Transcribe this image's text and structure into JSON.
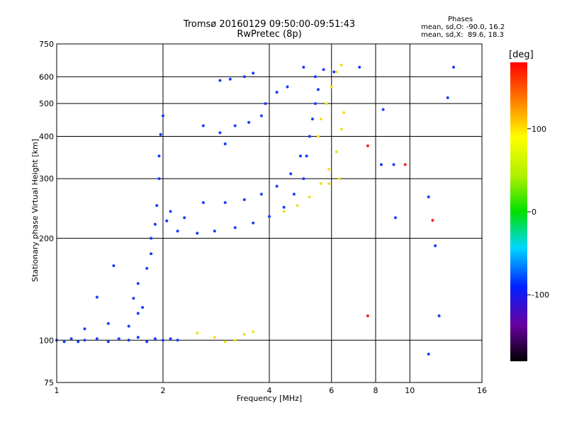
{
  "header": {
    "title_line1": "Tromsø 20160129 09:50:00-09:51:43",
    "title_line2": "RwPretec (8p)",
    "info_title": "Phases",
    "info_o": "mean, sd,O: -90.0, 16.2",
    "info_x": "mean, sd,X:  89.6, 18.3"
  },
  "chart_data": {
    "type": "scatter",
    "title": "Tromsø 20160129 09:50:00-09:51:43",
    "subtitle": "RwPretec (8p)",
    "xlabel": "Frequency [MHz]",
    "ylabel": "Stationary phase Virtual Height [km]",
    "x_scale": "log",
    "y_scale": "log",
    "xlim": [
      1,
      16
    ],
    "ylim": [
      75,
      750
    ],
    "x_ticks": [
      1,
      2,
      4,
      6,
      8,
      10,
      16
    ],
    "x_tick_labels": [
      "1",
      "2",
      "4",
      "6",
      "8",
      "10",
      "16"
    ],
    "y_ticks": [
      75,
      100,
      200,
      300,
      400,
      500,
      600,
      750
    ],
    "y_tick_labels": [
      "75",
      "100",
      "200",
      "300",
      "400",
      "500",
      "600",
      "750"
    ],
    "grid": true,
    "colorbar": {
      "label": "[deg]",
      "range": [
        -180,
        180
      ],
      "ticks": [
        -100,
        0,
        100
      ],
      "tick_labels": [
        "-100",
        "0",
        "100"
      ]
    },
    "series": [
      {
        "mode": "O",
        "color": "#1a3aff",
        "points": [
          [
            1.0,
            100
          ],
          [
            1.05,
            99
          ],
          [
            1.1,
            101
          ],
          [
            1.15,
            99
          ],
          [
            1.2,
            100
          ],
          [
            1.3,
            101
          ],
          [
            1.4,
            99
          ],
          [
            1.5,
            101
          ],
          [
            1.6,
            100
          ],
          [
            1.7,
            102
          ],
          [
            1.8,
            99
          ],
          [
            1.9,
            101
          ],
          [
            2.0,
            100
          ],
          [
            2.1,
            101
          ],
          [
            2.2,
            100
          ],
          [
            1.2,
            108
          ],
          [
            1.4,
            112
          ],
          [
            1.6,
            110
          ],
          [
            1.7,
            120
          ],
          [
            1.65,
            133
          ],
          [
            1.7,
            147
          ],
          [
            1.75,
            125
          ],
          [
            1.3,
            134
          ],
          [
            1.45,
            166
          ],
          [
            1.8,
            163
          ],
          [
            1.85,
            180
          ],
          [
            1.85,
            200
          ],
          [
            1.9,
            220
          ],
          [
            1.92,
            250
          ],
          [
            1.95,
            300
          ],
          [
            1.95,
            350
          ],
          [
            1.97,
            405
          ],
          [
            2.0,
            460
          ],
          [
            2.05,
            225
          ],
          [
            2.2,
            210
          ],
          [
            2.5,
            207
          ],
          [
            2.8,
            210
          ],
          [
            3.2,
            215
          ],
          [
            3.6,
            222
          ],
          [
            4.0,
            232
          ],
          [
            4.4,
            247
          ],
          [
            4.7,
            270
          ],
          [
            5.0,
            300
          ],
          [
            5.1,
            350
          ],
          [
            5.2,
            400
          ],
          [
            5.3,
            450
          ],
          [
            5.4,
            500
          ],
          [
            5.5,
            550
          ],
          [
            5.7,
            630
          ],
          [
            2.6,
            255
          ],
          [
            3.0,
            255
          ],
          [
            3.4,
            260
          ],
          [
            3.8,
            270
          ],
          [
            4.2,
            285
          ],
          [
            4.6,
            310
          ],
          [
            4.9,
            350
          ],
          [
            2.6,
            430
          ],
          [
            2.9,
            410
          ],
          [
            3.0,
            380
          ],
          [
            3.2,
            430
          ],
          [
            3.5,
            440
          ],
          [
            3.8,
            460
          ],
          [
            3.9,
            500
          ],
          [
            4.2,
            540
          ],
          [
            4.5,
            560
          ],
          [
            5.0,
            640
          ],
          [
            2.9,
            585
          ],
          [
            3.1,
            590
          ],
          [
            3.4,
            600
          ],
          [
            3.6,
            615
          ],
          [
            2.3,
            230
          ],
          [
            2.1,
            240
          ],
          [
            5.4,
            600
          ],
          [
            6.1,
            620
          ],
          [
            7.2,
            640
          ],
          [
            8.4,
            480
          ],
          [
            8.3,
            330
          ],
          [
            9.1,
            230
          ],
          [
            9.0,
            330
          ],
          [
            11.3,
            265
          ],
          [
            11.8,
            190
          ],
          [
            12.1,
            118
          ],
          [
            11.3,
            91
          ],
          [
            12.8,
            520
          ],
          [
            13.3,
            640
          ]
        ]
      },
      {
        "mode": "X",
        "color": "#f0e020",
        "points": [
          [
            2.5,
            105
          ],
          [
            2.8,
            102
          ],
          [
            3.0,
            99
          ],
          [
            3.2,
            100
          ],
          [
            3.4,
            104
          ],
          [
            3.6,
            106
          ],
          [
            4.4,
            240
          ],
          [
            4.8,
            250
          ],
          [
            5.2,
            265
          ],
          [
            5.6,
            290
          ],
          [
            5.9,
            320
          ],
          [
            6.2,
            360
          ],
          [
            6.4,
            420
          ],
          [
            6.5,
            470
          ],
          [
            5.5,
            400
          ],
          [
            5.6,
            450
          ],
          [
            5.8,
            500
          ],
          [
            6.0,
            560
          ],
          [
            6.2,
            620
          ],
          [
            6.4,
            650
          ],
          [
            5.9,
            290
          ],
          [
            6.3,
            300
          ]
        ]
      },
      {
        "mode": "mixed",
        "color": "#ff2020",
        "points": [
          [
            7.6,
            375
          ],
          [
            9.7,
            330
          ],
          [
            7.6,
            118
          ],
          [
            11.6,
            226
          ]
        ]
      }
    ]
  }
}
